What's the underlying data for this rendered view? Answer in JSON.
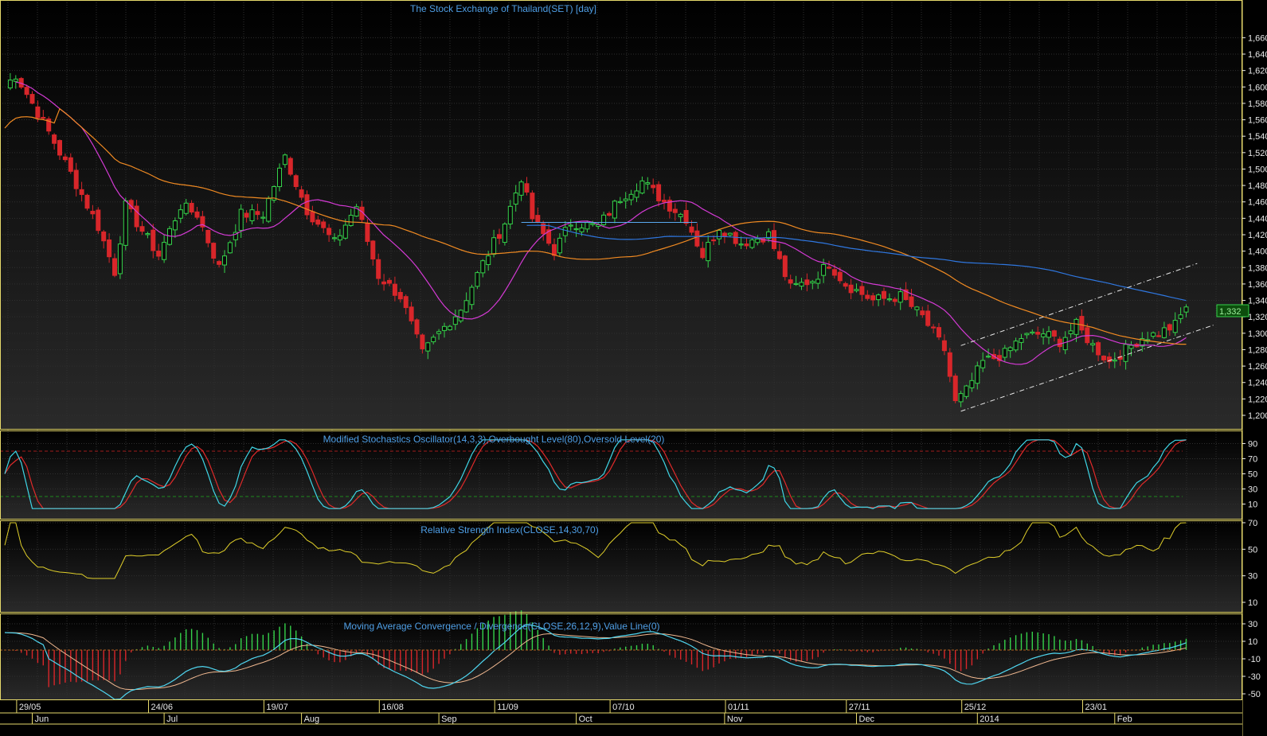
{
  "window": {
    "title": "The Stock Exchange of Thailand(SET) [day]"
  },
  "colors": {
    "background": "#000000",
    "frame": "#e6d96b",
    "grid": "#2f2f2f",
    "title_text": "#4f9fe6",
    "axis_text": "#e8e8e8",
    "up_candle": "#35d24a",
    "down_candle": "#d8262a",
    "ma_fast": "#d43ad4",
    "ma_mid": "#f08a22",
    "ma_slow": "#2f77e0",
    "channel": "#e8e8e8",
    "stoch_k": "#3fd6e6",
    "stoch_d": "#e12a2a",
    "overbought_line": "#a01c1c",
    "oversold_line": "#1e8a1e",
    "rsi": "#e0cf2a",
    "macd_line": "#4fd6f0",
    "signal_line": "#f0b890",
    "histogram_up": "#35d24a",
    "histogram_down": "#d8262a",
    "last_price_bg": "#0d4d0d",
    "last_price_text": "#9ff29f"
  },
  "time_axis": {
    "date_labels": [
      "29/05",
      "24/06",
      "19/07",
      "16/08",
      "11/09",
      "07/10",
      "01/11",
      "27/11",
      "25/12",
      "23/01"
    ],
    "month_labels": [
      "Jun",
      "Jul",
      "Aug",
      "Sep",
      "Oct",
      "Nov",
      "Dec",
      "2014",
      "Feb"
    ]
  },
  "chart_data": [
    {
      "type": "candlestick",
      "title": "The Stock Exchange of Thailand(SET) [day]",
      "ylim": [
        1190,
        1670
      ],
      "y_ticks": [
        "1,200",
        "1,220",
        "1,240",
        "1,260",
        "1,280",
        "1,300",
        "1,320",
        "1,340",
        "1,360",
        "1,380",
        "1,400",
        "1,420",
        "1,440",
        "1,460",
        "1,480",
        "1,500",
        "1,520",
        "1,540",
        "1,560",
        "1,580",
        "1,600",
        "1,620",
        "1,640",
        "1,660"
      ],
      "last_price": "1,332",
      "close_anchors": [
        {
          "i": 0,
          "v": 1600
        },
        {
          "i": 2,
          "v": 1615
        },
        {
          "i": 8,
          "v": 1545
        },
        {
          "i": 12,
          "v": 1495
        },
        {
          "i": 17,
          "v": 1430
        },
        {
          "i": 20,
          "v": 1375
        },
        {
          "i": 22,
          "v": 1455
        },
        {
          "i": 28,
          "v": 1395
        },
        {
          "i": 32,
          "v": 1455
        },
        {
          "i": 35,
          "v": 1445
        },
        {
          "i": 39,
          "v": 1380
        },
        {
          "i": 43,
          "v": 1445
        },
        {
          "i": 47,
          "v": 1445
        },
        {
          "i": 51,
          "v": 1515
        },
        {
          "i": 55,
          "v": 1450
        },
        {
          "i": 60,
          "v": 1410
        },
        {
          "i": 64,
          "v": 1455
        },
        {
          "i": 68,
          "v": 1370
        },
        {
          "i": 72,
          "v": 1345
        },
        {
          "i": 76,
          "v": 1275
        },
        {
          "i": 79,
          "v": 1300
        },
        {
          "i": 83,
          "v": 1330
        },
        {
          "i": 87,
          "v": 1385
        },
        {
          "i": 91,
          "v": 1435
        },
        {
          "i": 94,
          "v": 1490
        },
        {
          "i": 96,
          "v": 1440
        },
        {
          "i": 100,
          "v": 1400
        },
        {
          "i": 103,
          "v": 1435
        },
        {
          "i": 108,
          "v": 1430
        },
        {
          "i": 112,
          "v": 1465
        },
        {
          "i": 116,
          "v": 1485
        },
        {
          "i": 120,
          "v": 1460
        },
        {
          "i": 124,
          "v": 1440
        },
        {
          "i": 127,
          "v": 1395
        },
        {
          "i": 130,
          "v": 1430
        },
        {
          "i": 134,
          "v": 1410
        },
        {
          "i": 139,
          "v": 1420
        },
        {
          "i": 143,
          "v": 1355
        },
        {
          "i": 147,
          "v": 1365
        },
        {
          "i": 150,
          "v": 1385
        },
        {
          "i": 153,
          "v": 1360
        },
        {
          "i": 158,
          "v": 1340
        },
        {
          "i": 163,
          "v": 1345
        },
        {
          "i": 167,
          "v": 1320
        },
        {
          "i": 171,
          "v": 1280
        },
        {
          "i": 173,
          "v": 1215
        },
        {
          "i": 175,
          "v": 1230
        },
        {
          "i": 178,
          "v": 1265
        },
        {
          "i": 182,
          "v": 1275
        },
        {
          "i": 185,
          "v": 1295
        },
        {
          "i": 189,
          "v": 1300
        },
        {
          "i": 192,
          "v": 1290
        },
        {
          "i": 195,
          "v": 1310
        },
        {
          "i": 198,
          "v": 1285
        },
        {
          "i": 201,
          "v": 1265
        },
        {
          "i": 204,
          "v": 1280
        },
        {
          "i": 207,
          "v": 1295
        },
        {
          "i": 210,
          "v": 1300
        },
        {
          "i": 213,
          "v": 1310
        },
        {
          "i": 215,
          "v": 1332
        }
      ],
      "horizontal_line": {
        "value": 1435,
        "from_index": 94,
        "to_index": 126
      },
      "channel_lines": [
        {
          "from_index": 174,
          "from_value": 1285,
          "to_index": 217,
          "to_value": 1385
        },
        {
          "from_index": 174,
          "from_value": 1205,
          "to_index": 220,
          "to_value": 1310
        }
      ]
    },
    {
      "type": "line",
      "title": "Modified Stochastics Oscillator(14,3,3),Overbought Level(80),Oversold Level(20)",
      "ylim": [
        0,
        100
      ],
      "y_ticks": [
        "90",
        "70",
        "50",
        "30",
        "10"
      ],
      "levels": [
        80,
        20
      ]
    },
    {
      "type": "line",
      "title": "Relative Strength Index(CLOSE,14,30,70)",
      "ylim": [
        0,
        90
      ],
      "y_ticks": [
        "70",
        "50",
        "30",
        "10"
      ]
    },
    {
      "type": "bar",
      "title": "Moving Average Convergence / Divergence(CLOSE,26,12,9),Value Line(0)",
      "ylim": [
        -60,
        40
      ],
      "y_ticks": [
        "30",
        "10",
        "-10",
        "-30",
        "-50"
      ],
      "value_line": 0
    }
  ]
}
